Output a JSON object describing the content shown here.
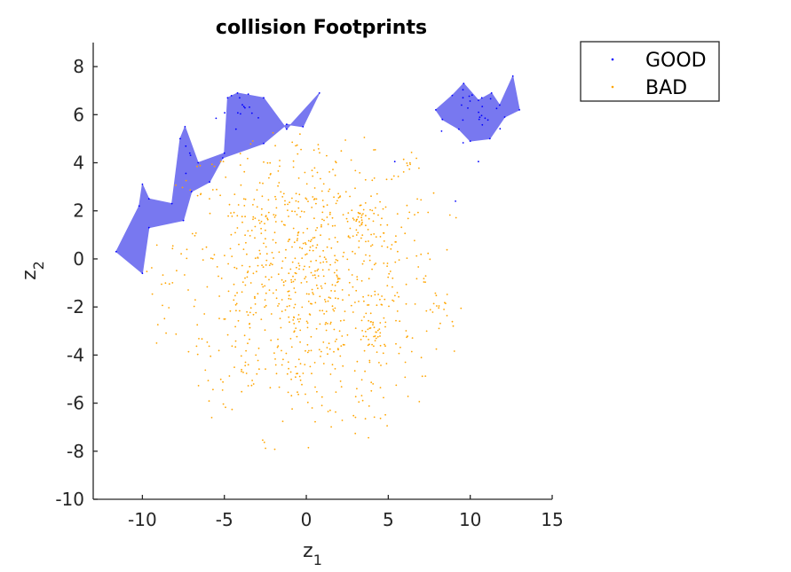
{
  "chart_data": {
    "type": "scatter",
    "title": "collision Footprints",
    "xlabel": {
      "base": "z",
      "sub": "1"
    },
    "ylabel": {
      "base": "z",
      "sub": "2"
    },
    "xlim": [
      -13,
      15
    ],
    "ylim": [
      -10,
      9
    ],
    "xticks": [
      -10,
      -5,
      0,
      5,
      10,
      15
    ],
    "yticks": [
      -10,
      -8,
      -6,
      -4,
      -2,
      0,
      2,
      4,
      6,
      8
    ],
    "grid": false,
    "legend": {
      "position": "top-right-outside",
      "entries": [
        "GOOD",
        "BAD"
      ]
    },
    "colors": {
      "good": "#0000ff",
      "bad": "#ffa500",
      "footprint_fill": "#7878f0"
    },
    "footprints": [
      [
        [
          -11.6,
          0.3
        ],
        [
          -10.2,
          2.2
        ],
        [
          -10.0,
          3.1
        ],
        [
          -9.6,
          2.5
        ],
        [
          -8.2,
          2.3
        ],
        [
          -7.7,
          5.0
        ],
        [
          -7.4,
          5.5
        ],
        [
          -6.6,
          4.0
        ],
        [
          -5.0,
          4.4
        ],
        [
          -4.8,
          6.7
        ],
        [
          -4.2,
          6.9
        ],
        [
          -2.6,
          6.7
        ],
        [
          -1.2,
          5.4
        ],
        [
          0.8,
          6.9
        ],
        [
          -0.2,
          5.5
        ],
        [
          -1.2,
          5.6
        ],
        [
          -2.6,
          4.8
        ],
        [
          -5.1,
          4.2
        ],
        [
          -5.9,
          3.2
        ],
        [
          -7.0,
          2.8
        ],
        [
          -7.5,
          1.6
        ],
        [
          -9.6,
          1.3
        ],
        [
          -10.0,
          -0.6
        ]
      ],
      [
        [
          7.9,
          6.2
        ],
        [
          8.9,
          6.8
        ],
        [
          9.6,
          7.3
        ],
        [
          10.5,
          6.6
        ],
        [
          11.3,
          6.9
        ],
        [
          11.8,
          6.4
        ],
        [
          12.6,
          7.6
        ],
        [
          13.0,
          6.2
        ],
        [
          12.1,
          5.9
        ],
        [
          11.2,
          5.0
        ],
        [
          10.0,
          4.9
        ],
        [
          9.3,
          5.4
        ],
        [
          8.3,
          5.8
        ]
      ]
    ],
    "series": [
      {
        "name": "GOOD",
        "marker": ".",
        "approx_count": 80
      },
      {
        "name": "BAD",
        "marker": ".",
        "approx_count": 900
      }
    ]
  }
}
